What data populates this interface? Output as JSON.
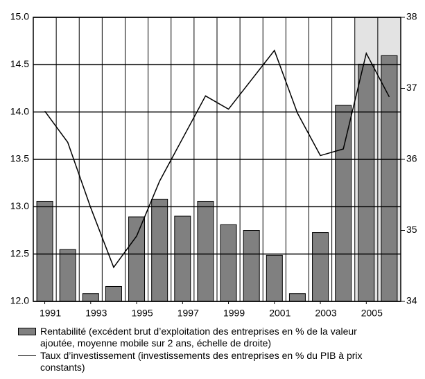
{
  "chart_data": {
    "type": "bar-line",
    "categories": [
      "1991",
      null,
      "1993",
      null,
      "1995",
      null,
      "1997",
      null,
      "1999",
      null,
      "2001",
      null,
      "2003",
      null,
      "2005",
      null
    ],
    "series": [
      {
        "name": "Rentabilité (excédent brut d’exploitation des entreprises en % de la valeur ajoutée, moyenne mobile sur 2 ans, échelle de droite)",
        "type": "bar",
        "axis": "y2",
        "color": "#808080",
        "values": [
          35.41,
          34.73,
          34.11,
          34.21,
          35.19,
          35.44,
          35.2,
          35.41,
          35.08,
          35.0,
          34.65,
          34.11,
          34.97,
          36.76,
          37.34,
          37.46
        ]
      },
      {
        "name": "Taux d’investissement (investissements des entreprises en % du PIB à prix constants)",
        "type": "line",
        "axis": "y",
        "color": "#000000",
        "values": [
          14.01,
          13.68,
          12.99,
          12.36,
          12.69,
          13.27,
          13.72,
          14.17,
          14.03,
          14.34,
          14.65,
          13.99,
          13.54,
          13.61,
          14.62,
          14.16
        ]
      }
    ],
    "ylim": [
      12,
      15
    ],
    "yticks": [
      {
        "value": 12,
        "label": "12.0"
      },
      {
        "value": 12.5,
        "label": "12.5"
      },
      {
        "value": 13,
        "label": "13.0"
      },
      {
        "value": 13.5,
        "label": "13.5"
      },
      {
        "value": 14,
        "label": "14.0"
      },
      {
        "value": 14.5,
        "label": "14.5"
      },
      {
        "value": 15,
        "label": "15.0"
      }
    ],
    "y2lim": [
      34,
      38
    ],
    "y2ticks": [
      34,
      35,
      36,
      37,
      38
    ],
    "grid": true
  }
}
